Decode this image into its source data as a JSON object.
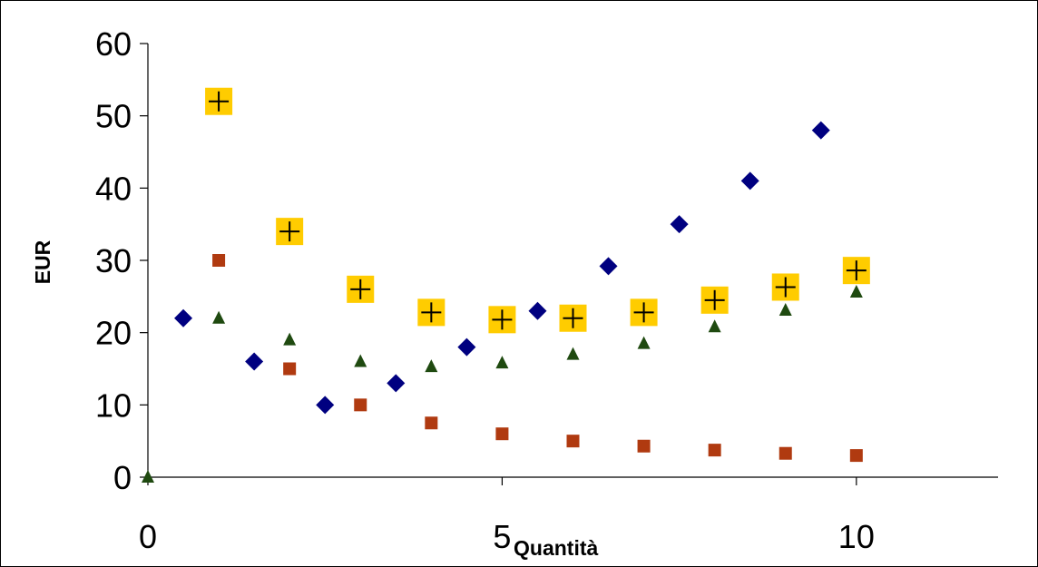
{
  "chart_data": {
    "type": "scatter",
    "xlabel": "Quantità",
    "ylabel": "EUR",
    "xlim": [
      0,
      12
    ],
    "ylim": [
      0,
      60
    ],
    "x_ticks": [
      0,
      5,
      10
    ],
    "y_ticks": [
      0,
      10,
      20,
      30,
      40,
      50,
      60
    ],
    "grid": false,
    "legend": "none",
    "series": [
      {
        "marker": "diamond",
        "color": "#000080",
        "points": [
          [
            0.5,
            22
          ],
          [
            1.5,
            16
          ],
          [
            2.5,
            10
          ],
          [
            3.5,
            13
          ],
          [
            4.5,
            18
          ],
          [
            5.5,
            23
          ],
          [
            6.5,
            29.2
          ],
          [
            7.5,
            35
          ],
          [
            8.5,
            41
          ],
          [
            9.5,
            48
          ]
        ]
      },
      {
        "marker": "square",
        "color": "#B03A10",
        "points": [
          [
            1,
            30
          ],
          [
            2,
            15
          ],
          [
            3,
            10
          ],
          [
            4,
            7.5
          ],
          [
            5,
            6
          ],
          [
            6,
            5
          ],
          [
            7,
            4.3
          ],
          [
            8,
            3.75
          ],
          [
            9,
            3.3
          ],
          [
            10,
            3
          ]
        ]
      },
      {
        "marker": "triangle",
        "color": "#1F4A10",
        "points": [
          [
            0,
            0
          ],
          [
            1,
            22
          ],
          [
            2,
            19
          ],
          [
            3,
            16
          ],
          [
            4,
            15.3
          ],
          [
            5,
            15.8
          ],
          [
            6,
            17
          ],
          [
            7,
            18.5
          ],
          [
            8,
            20.8
          ],
          [
            9,
            23.1
          ],
          [
            10,
            25.6
          ]
        ]
      },
      {
        "marker": "plus-square",
        "color": "#FFCC00",
        "points": [
          [
            1,
            52
          ],
          [
            2,
            34
          ],
          [
            3,
            26
          ],
          [
            4,
            22.8
          ],
          [
            5,
            21.8
          ],
          [
            6,
            22
          ],
          [
            7,
            22.8
          ],
          [
            8,
            24.5
          ],
          [
            9,
            26.3
          ],
          [
            10,
            28.6
          ]
        ]
      }
    ]
  }
}
